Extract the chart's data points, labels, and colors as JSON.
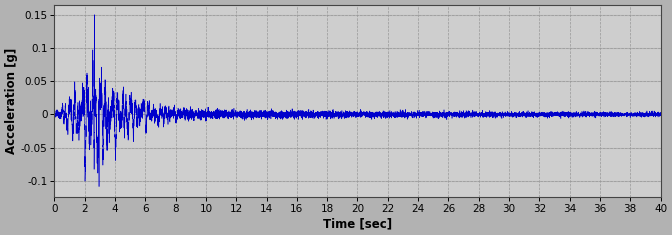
{
  "title": "",
  "xlabel": "Time [sec]",
  "ylabel": "Acceleration [g]",
  "xlim": [
    0,
    40
  ],
  "ylim": [
    -0.125,
    0.165
  ],
  "yticks": [
    -0.1,
    -0.05,
    0.0,
    0.05,
    0.1,
    0.15
  ],
  "xticks": [
    0,
    2,
    4,
    6,
    8,
    10,
    12,
    14,
    16,
    18,
    20,
    22,
    24,
    26,
    28,
    30,
    32,
    34,
    36,
    38,
    40
  ],
  "line_color": "#0000CC",
  "bg_outer": "#a8a8a8",
  "bg_plot": "#c8c8c8",
  "grid_color": "#aaaaaa",
  "grid_style": "--",
  "duration": 40.0,
  "sample_rate": 200,
  "peak_acceleration": 0.15,
  "peak_time": 2.65,
  "negative_peak": -0.11,
  "negative_peak_time": 2.95,
  "tick_labelsize": 7.5,
  "xlabel_fontsize": 8.5,
  "ylabel_fontsize": 8.5
}
